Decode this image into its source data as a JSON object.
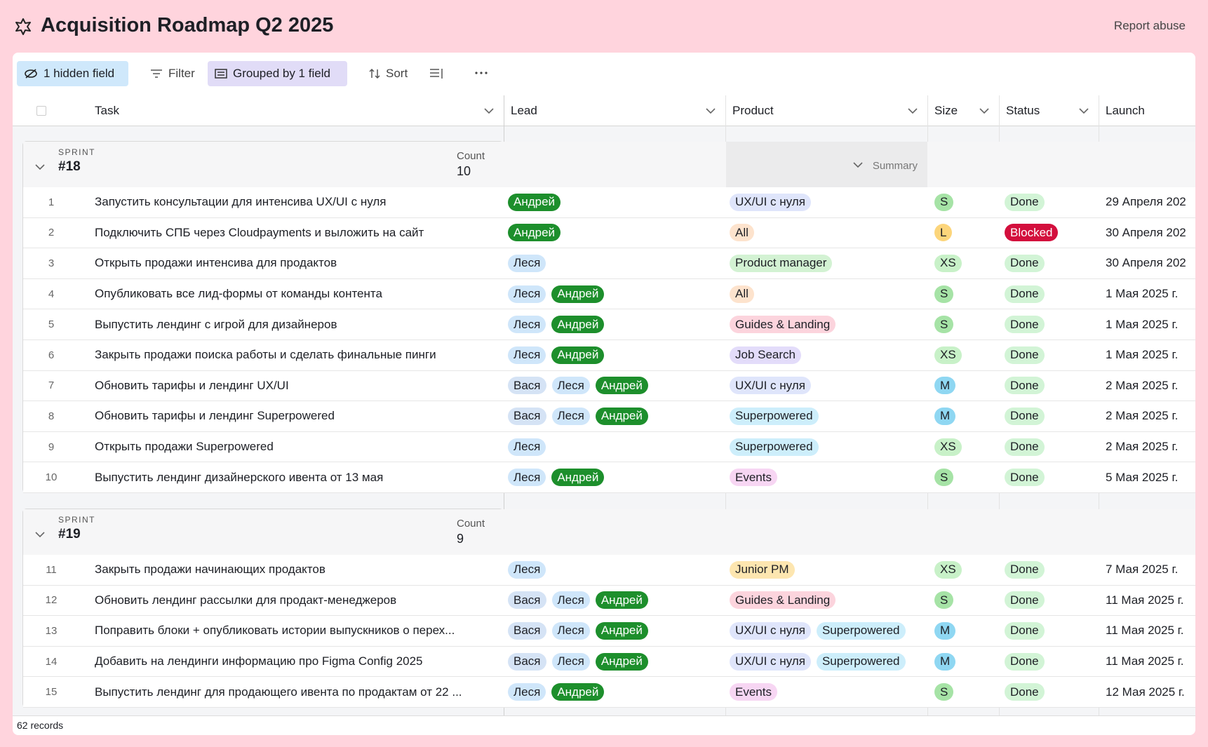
{
  "header": {
    "title": "Acquisition Roadmap Q2 2025",
    "report": "Report abuse"
  },
  "toolbar": {
    "hidden": "1 hidden field",
    "filter": "Filter",
    "grouped": "Grouped by 1 field",
    "sort": "Sort"
  },
  "columns": [
    "Task",
    "Lead",
    "Product",
    "Size",
    "Status",
    "Launch"
  ],
  "tag_colors": {
    "Андрей": "#1d8f2c",
    "Леся": "#cfe6fa",
    "Вася": "#d5e3f5",
    "UX/UI с нуля": "#dfe5fb",
    "All": "#fde3cd",
    "Product manager": "#d3f2d3",
    "Guides & Landing": "#fcd4dd",
    "Job Search": "#e3dcfa",
    "Superpowered": "#cdeefb",
    "Events": "#f7d6f3",
    "Junior PM": "#fde6b0",
    "S": "#a6e3a6",
    "L": "#fcd57b",
    "XS": "#c8f1c8",
    "M": "#8fd7f2",
    "Done": "#d2f4d6",
    "Blocked": "#d30f3d"
  },
  "groups": [
    {
      "label": "SPRINT",
      "name": "#18",
      "count_label": "Count",
      "count": 10,
      "summary": "Summary",
      "rows": [
        {
          "n": 1,
          "task": "Запустить консультации для интенсива UX/UI с нуля",
          "lead": [
            "Андрей"
          ],
          "product": [
            "UX/UI с нуля"
          ],
          "size": "S",
          "status": "Done",
          "launch": "29 Апреля 202"
        },
        {
          "n": 2,
          "task": "Подключить СПБ через Cloudpayments и выложить на сайт",
          "lead": [
            "Андрей"
          ],
          "product": [
            "All"
          ],
          "size": "L",
          "status": "Blocked",
          "launch": "30 Апреля 202"
        },
        {
          "n": 3,
          "task": "Открыть продажи интенсива для продактов",
          "lead": [
            "Леся"
          ],
          "product": [
            "Product manager"
          ],
          "size": "XS",
          "status": "Done",
          "launch": "30 Апреля 202"
        },
        {
          "n": 4,
          "task": "Опубликовать все лид-формы от команды контента",
          "lead": [
            "Леся",
            "Андрей"
          ],
          "product": [
            "All"
          ],
          "size": "S",
          "status": "Done",
          "launch": "1 Мая 2025 г."
        },
        {
          "n": 5,
          "task": "Выпустить лендинг с игрой для дизайнеров",
          "lead": [
            "Леся",
            "Андрей"
          ],
          "product": [
            "Guides & Landing"
          ],
          "size": "S",
          "status": "Done",
          "launch": "1 Мая 2025 г."
        },
        {
          "n": 6,
          "task": "Закрыть продажи поиска работы и сделать финальные пинги",
          "lead": [
            "Леся",
            "Андрей"
          ],
          "product": [
            "Job Search"
          ],
          "size": "XS",
          "status": "Done",
          "launch": "1 Мая 2025 г."
        },
        {
          "n": 7,
          "task": "Обновить тарифы и лендинг UX/UI",
          "lead": [
            "Вася",
            "Леся",
            "Андрей"
          ],
          "product": [
            "UX/UI с нуля"
          ],
          "size": "M",
          "status": "Done",
          "launch": "2 Мая 2025 г."
        },
        {
          "n": 8,
          "task": "Обновить тарифы и лендинг Superpowered",
          "lead": [
            "Вася",
            "Леся",
            "Андрей"
          ],
          "product": [
            "Superpowered"
          ],
          "size": "M",
          "status": "Done",
          "launch": "2 Мая 2025 г."
        },
        {
          "n": 9,
          "task": "Открыть продажи Superpowered",
          "lead": [
            "Леся"
          ],
          "product": [
            "Superpowered"
          ],
          "size": "XS",
          "status": "Done",
          "launch": "2 Мая 2025 г."
        },
        {
          "n": 10,
          "task": "Выпустить лендинг дизайнерского ивента от 13 мая",
          "lead": [
            "Леся",
            "Андрей"
          ],
          "product": [
            "Events"
          ],
          "size": "S",
          "status": "Done",
          "launch": "5 Мая 2025 г."
        }
      ]
    },
    {
      "label": "SPRINT",
      "name": "#19",
      "count_label": "Count",
      "count": 9,
      "rows": [
        {
          "n": 11,
          "task": "Закрыть продажи начинающих продактов",
          "lead": [
            "Леся"
          ],
          "product": [
            "Junior PM"
          ],
          "size": "XS",
          "status": "Done",
          "launch": "7 Мая 2025 г."
        },
        {
          "n": 12,
          "task": "Обновить лендинг рассылки для продакт-менеджеров",
          "lead": [
            "Вася",
            "Леся",
            "Андрей"
          ],
          "product": [
            "Guides & Landing"
          ],
          "size": "S",
          "status": "Done",
          "launch": "11 Мая 2025 г."
        },
        {
          "n": 13,
          "task": "Поправить блоки + опубликовать истории выпускников о перех...",
          "lead": [
            "Вася",
            "Леся",
            "Андрей"
          ],
          "product": [
            "UX/UI с нуля",
            "Superpowered"
          ],
          "size": "M",
          "status": "Done",
          "launch": "11 Мая 2025 г."
        },
        {
          "n": 14,
          "task": "Добавить на лендинги информацию про Figma Config 2025",
          "lead": [
            "Вася",
            "Леся",
            "Андрей"
          ],
          "product": [
            "UX/UI с нуля",
            "Superpowered"
          ],
          "size": "M",
          "status": "Done",
          "launch": "11 Мая 2025 г."
        },
        {
          "n": 15,
          "task": "Выпустить лендинг для продающего ивента по продактам от 22 ...",
          "lead": [
            "Леся",
            "Андрей"
          ],
          "product": [
            "Events"
          ],
          "size": "S",
          "status": "Done",
          "launch": "12 Мая 2025 г."
        }
      ]
    }
  ],
  "footer": "62 records"
}
